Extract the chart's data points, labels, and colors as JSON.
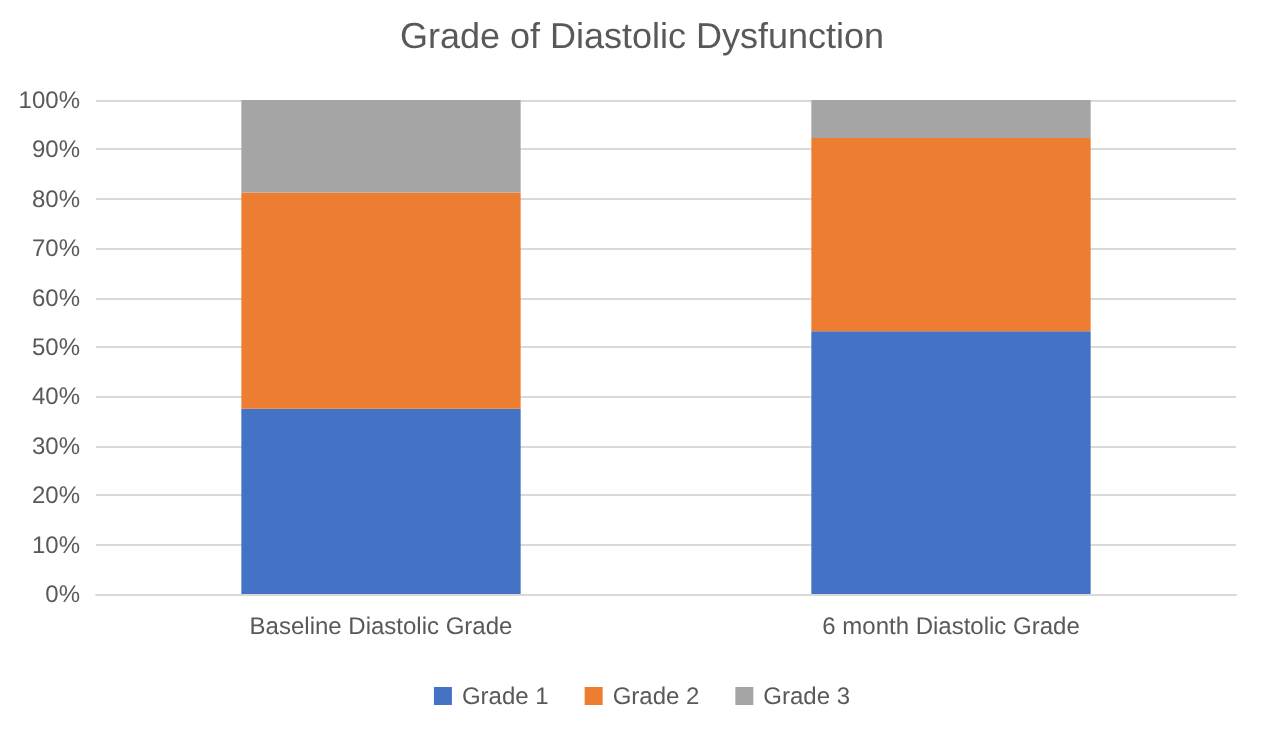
{
  "chart_data": {
    "type": "bar",
    "title": "Grade of Diastolic Dysfunction",
    "categories": [
      "Baseline Diastolic Grade",
      "6 month Diastolic Grade"
    ],
    "series": [
      {
        "name": "Grade 1",
        "color": "#4472c4",
        "values": [
          37.5,
          53.2
        ]
      },
      {
        "name": "Grade 2",
        "color": "#ed7d31",
        "values": [
          43.8,
          39.1
        ]
      },
      {
        "name": "Grade 3",
        "color": "#a5a5a5",
        "values": [
          18.7,
          7.7
        ]
      }
    ],
    "stacked": true,
    "ylim": [
      0,
      100
    ],
    "yticks": [
      {
        "value": 0,
        "label": "0%"
      },
      {
        "value": 10,
        "label": "10%"
      },
      {
        "value": 20,
        "label": "20%"
      },
      {
        "value": 30,
        "label": "30%"
      },
      {
        "value": 40,
        "label": "40%"
      },
      {
        "value": 50,
        "label": "50%"
      },
      {
        "value": 60,
        "label": "60%"
      },
      {
        "value": 70,
        "label": "70%"
      },
      {
        "value": 80,
        "label": "80%"
      },
      {
        "value": 90,
        "label": "90%"
      },
      {
        "value": 100,
        "label": "100%"
      }
    ],
    "grid": "y",
    "legend": "bottom"
  }
}
